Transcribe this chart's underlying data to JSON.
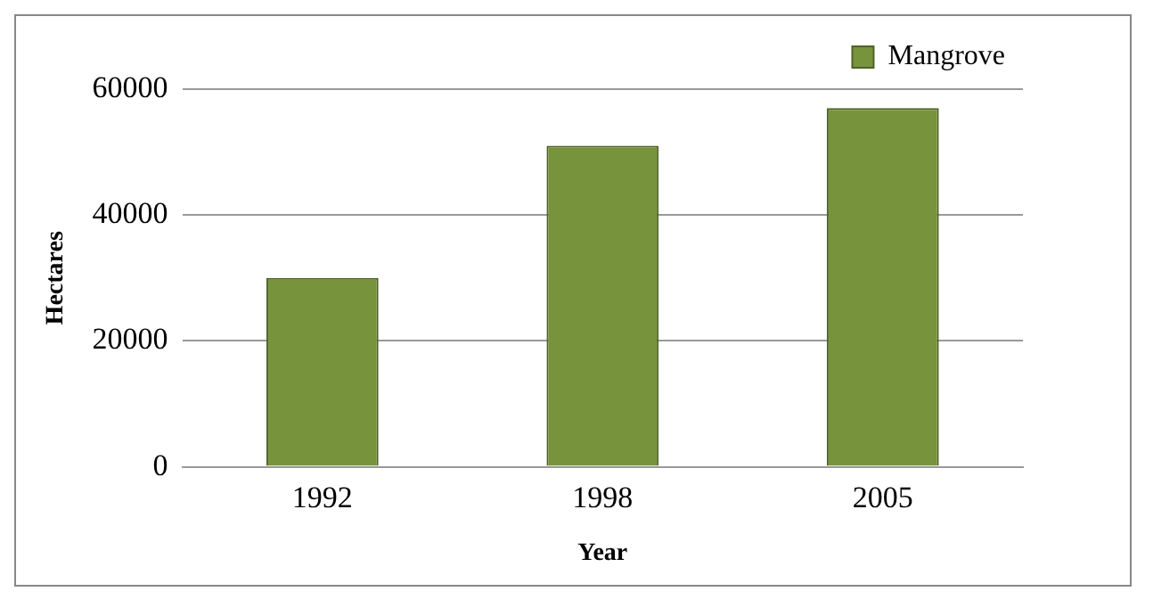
{
  "chart_data": {
    "type": "bar",
    "xlabel": "Year",
    "ylabel": "Hectares",
    "categories": [
      "1992",
      "1998",
      "2005"
    ],
    "series": [
      {
        "name": "Mangrove",
        "color": "#77933c",
        "values": [
          30000,
          51000,
          57000
        ]
      }
    ],
    "ylim": [
      0,
      60000
    ],
    "yticks": [
      0,
      20000,
      40000,
      60000
    ],
    "grid": "y",
    "legend": "top right"
  }
}
